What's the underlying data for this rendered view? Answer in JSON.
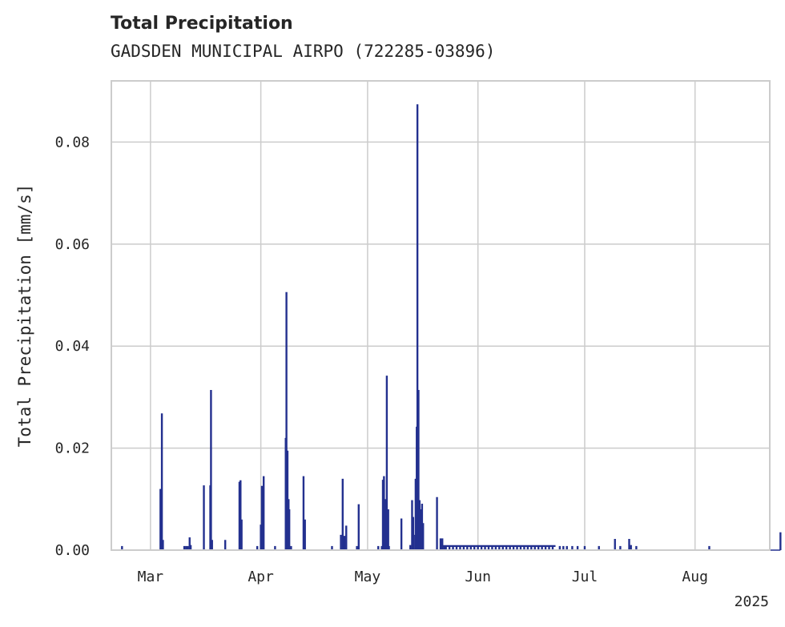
{
  "chart_data": {
    "type": "line",
    "title": "Total Precipitation",
    "subtitle": "GADSDEN MUNICIPAL AIRPO (722285-03896)",
    "ylabel": "Total Precipitation [mm/s]",
    "xlabel": "",
    "year_label": "2025",
    "ylim": [
      0,
      0.092
    ],
    "xlim": [
      "2025-02-18",
      "2025-08-21"
    ],
    "yticks": [
      {
        "value": 0.0,
        "label": "0.00"
      },
      {
        "value": 0.02,
        "label": "0.02"
      },
      {
        "value": 0.04,
        "label": "0.04"
      },
      {
        "value": 0.06,
        "label": "0.06"
      },
      {
        "value": 0.08,
        "label": "0.08"
      }
    ],
    "xticks": [
      {
        "day": 11,
        "label": "Mar"
      },
      {
        "day": 42,
        "label": "Apr"
      },
      {
        "day": 72,
        "label": "May"
      },
      {
        "day": 103,
        "label": "Jun"
      },
      {
        "day": 133,
        "label": "Jul"
      },
      {
        "day": 164,
        "label": "Aug"
      }
    ],
    "grid": true,
    "line_color": "#23308f",
    "x_unit": "days since 2025-02-18",
    "series": [
      {
        "name": "Total Precipitation",
        "spikes": [
          [
            3.0,
            0.0008
          ],
          [
            13.8,
            0.012
          ],
          [
            14.2,
            0.0268
          ],
          [
            14.5,
            0.002
          ],
          [
            20.5,
            0.0008
          ],
          [
            21.0,
            0.0008
          ],
          [
            21.5,
            0.0008
          ],
          [
            22.0,
            0.0025
          ],
          [
            22.3,
            0.001
          ],
          [
            26.0,
            0.0127
          ],
          [
            27.8,
            0.0127
          ],
          [
            28.0,
            0.0314
          ],
          [
            28.3,
            0.002
          ],
          [
            32.0,
            0.002
          ],
          [
            36.0,
            0.0134
          ],
          [
            36.3,
            0.0137
          ],
          [
            36.6,
            0.006
          ],
          [
            41.0,
            0.0008
          ],
          [
            42.0,
            0.005
          ],
          [
            42.3,
            0.0126
          ],
          [
            42.8,
            0.0145
          ],
          [
            46.0,
            0.0008
          ],
          [
            49.0,
            0.022
          ],
          [
            49.2,
            0.0506
          ],
          [
            49.5,
            0.0195
          ],
          [
            49.8,
            0.01
          ],
          [
            50.0,
            0.008
          ],
          [
            50.5,
            0.0008
          ],
          [
            54.0,
            0.0145
          ],
          [
            54.4,
            0.006
          ],
          [
            62.0,
            0.0008
          ],
          [
            64.5,
            0.003
          ],
          [
            65.0,
            0.014
          ],
          [
            65.5,
            0.0028
          ],
          [
            66.0,
            0.0048
          ],
          [
            69.0,
            0.0008
          ],
          [
            69.5,
            0.009
          ],
          [
            75.0,
            0.0008
          ],
          [
            76.0,
            0.0008
          ],
          [
            76.3,
            0.0138
          ],
          [
            76.6,
            0.0145
          ],
          [
            77.0,
            0.01
          ],
          [
            77.4,
            0.0342
          ],
          [
            77.8,
            0.008
          ],
          [
            78.0,
            0.0008
          ],
          [
            81.5,
            0.0062
          ],
          [
            84.0,
            0.001
          ],
          [
            84.5,
            0.0098
          ],
          [
            84.8,
            0.0065
          ],
          [
            85.0,
            0.003
          ],
          [
            85.5,
            0.014
          ],
          [
            85.8,
            0.0242
          ],
          [
            86.0,
            0.0874
          ],
          [
            86.3,
            0.0314
          ],
          [
            86.6,
            0.0098
          ],
          [
            87.0,
            0.008
          ],
          [
            87.3,
            0.0091
          ],
          [
            87.6,
            0.0053
          ],
          [
            91.5,
            0.0104
          ],
          [
            92.5,
            0.0023
          ],
          [
            93.0,
            0.0023
          ],
          [
            93.5,
            0.0008
          ],
          [
            94.0,
            0.0008
          ],
          [
            95.0,
            0.0008
          ],
          [
            96.0,
            0.0008
          ],
          [
            97.0,
            0.0008
          ],
          [
            98.0,
            0.0008
          ],
          [
            99.0,
            0.0008
          ],
          [
            100.0,
            0.0008
          ],
          [
            101.0,
            0.0008
          ],
          [
            102.0,
            0.0008
          ],
          [
            103.0,
            0.0008
          ],
          [
            104.0,
            0.0008
          ],
          [
            105.0,
            0.0008
          ],
          [
            106.0,
            0.0008
          ],
          [
            107.0,
            0.0008
          ],
          [
            108.0,
            0.0008
          ],
          [
            109.0,
            0.0008
          ],
          [
            110.0,
            0.0008
          ],
          [
            111.0,
            0.0008
          ],
          [
            112.0,
            0.0008
          ],
          [
            113.0,
            0.0008
          ],
          [
            114.0,
            0.0008
          ],
          [
            115.0,
            0.0008
          ],
          [
            116.0,
            0.0008
          ],
          [
            117.0,
            0.0008
          ],
          [
            118.0,
            0.0008
          ],
          [
            119.0,
            0.0008
          ],
          [
            120.0,
            0.0008
          ],
          [
            121.0,
            0.0008
          ],
          [
            122.0,
            0.0008
          ],
          [
            123.0,
            0.0008
          ],
          [
            124.0,
            0.0008
          ],
          [
            126.0,
            0.0008
          ],
          [
            127.0,
            0.0008
          ],
          [
            128.0,
            0.0008
          ],
          [
            129.5,
            0.0008
          ],
          [
            131.0,
            0.0008
          ],
          [
            133.0,
            0.0008
          ],
          [
            137.0,
            0.0008
          ],
          [
            141.5,
            0.0022
          ],
          [
            143.0,
            0.0008
          ],
          [
            145.5,
            0.0022
          ],
          [
            146.0,
            0.001
          ],
          [
            147.5,
            0.0008
          ],
          [
            168.0,
            0.0008
          ],
          [
            188.0,
            0.0035
          ]
        ],
        "plateaus": [
          {
            "start": 92.5,
            "end": 124.8,
            "value": 0.0008
          }
        ]
      }
    ]
  }
}
